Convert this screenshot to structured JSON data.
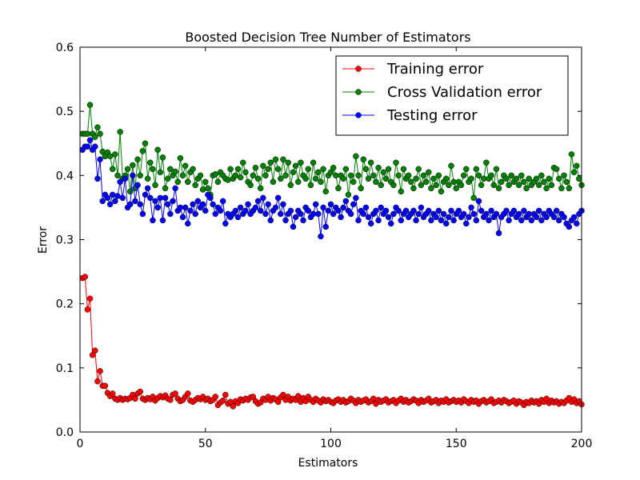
{
  "chart_data": {
    "type": "line",
    "title": "Boosted Decision Tree Number of Estimators",
    "x_label": "Estimators",
    "y_label": "Error",
    "xlim": [
      0,
      200
    ],
    "xticks": [
      0,
      50,
      100,
      150,
      200
    ],
    "ylim": [
      0,
      0.6
    ],
    "yticks": [
      {
        "value": 0,
        "label": "0.0"
      },
      0.1,
      0.2,
      0.3,
      0.4,
      0.5,
      0.6
    ],
    "legend": "upper right",
    "x": [
      1,
      2,
      3,
      4,
      5,
      6,
      7,
      8,
      9,
      10,
      11,
      12,
      13,
      14,
      15,
      16,
      17,
      18,
      19,
      20,
      21,
      22,
      23,
      24,
      25,
      26,
      27,
      28,
      29,
      30,
      31,
      32,
      33,
      34,
      35,
      36,
      37,
      38,
      39,
      40,
      41,
      42,
      43,
      44,
      45,
      46,
      47,
      48,
      49,
      50,
      51,
      52,
      53,
      54,
      55,
      56,
      57,
      58,
      59,
      60,
      61,
      62,
      63,
      64,
      65,
      66,
      67,
      68,
      69,
      70,
      71,
      72,
      73,
      74,
      75,
      76,
      77,
      78,
      79,
      80,
      81,
      82,
      83,
      84,
      85,
      86,
      87,
      88,
      89,
      90,
      91,
      92,
      93,
      94,
      95,
      96,
      97,
      98,
      99,
      100,
      101,
      102,
      103,
      104,
      105,
      106,
      107,
      108,
      109,
      110,
      111,
      112,
      113,
      114,
      115,
      116,
      117,
      118,
      119,
      120,
      121,
      122,
      123,
      124,
      125,
      126,
      127,
      128,
      129,
      130,
      131,
      132,
      133,
      134,
      135,
      136,
      137,
      138,
      139,
      140,
      141,
      142,
      143,
      144,
      145,
      146,
      147,
      148,
      149,
      150,
      151,
      152,
      153,
      154,
      155,
      156,
      157,
      158,
      159,
      160,
      161,
      162,
      163,
      164,
      165,
      166,
      167,
      168,
      169,
      170,
      171,
      172,
      173,
      174,
      175,
      176,
      177,
      178,
      179,
      180,
      181,
      182,
      183,
      184,
      185,
      186,
      187,
      188,
      189,
      190,
      191,
      192,
      193,
      194,
      195,
      196,
      197,
      198,
      199,
      200
    ],
    "series": [
      {
        "name": "Training error",
        "color": "#ff0000",
        "values": [
          0.24,
          0.242,
          0.191,
          0.208,
          0.12,
          0.127,
          0.079,
          0.095,
          0.072,
          0.072,
          0.061,
          0.056,
          0.06,
          0.052,
          0.05,
          0.053,
          0.05,
          0.052,
          0.051,
          0.053,
          0.058,
          0.052,
          0.06,
          0.063,
          0.052,
          0.05,
          0.053,
          0.051,
          0.055,
          0.049,
          0.053,
          0.056,
          0.054,
          0.057,
          0.052,
          0.05,
          0.058,
          0.06,
          0.052,
          0.048,
          0.05,
          0.055,
          0.06,
          0.049,
          0.047,
          0.05,
          0.053,
          0.051,
          0.055,
          0.05,
          0.052,
          0.048,
          0.05,
          0.055,
          0.042,
          0.046,
          0.049,
          0.058,
          0.044,
          0.047,
          0.04,
          0.048,
          0.045,
          0.051,
          0.049,
          0.052,
          0.05,
          0.054,
          0.055,
          0.048,
          0.044,
          0.046,
          0.052,
          0.05,
          0.055,
          0.049,
          0.053,
          0.051,
          0.047,
          0.054,
          0.058,
          0.05,
          0.055,
          0.049,
          0.052,
          0.05,
          0.056,
          0.047,
          0.053,
          0.048,
          0.055,
          0.05,
          0.047,
          0.052,
          0.049,
          0.046,
          0.051,
          0.048,
          0.05,
          0.047,
          0.045,
          0.049,
          0.051,
          0.047,
          0.05,
          0.046,
          0.048,
          0.052,
          0.049,
          0.045,
          0.05,
          0.047,
          0.049,
          0.051,
          0.046,
          0.048,
          0.052,
          0.044,
          0.05,
          0.047,
          0.049,
          0.051,
          0.046,
          0.048,
          0.05,
          0.045,
          0.049,
          0.052,
          0.047,
          0.05,
          0.046,
          0.048,
          0.051,
          0.049,
          0.045,
          0.05,
          0.047,
          0.049,
          0.052,
          0.046,
          0.048,
          0.05,
          0.045,
          0.049,
          0.047,
          0.051,
          0.046,
          0.048,
          0.05,
          0.047,
          0.049,
          0.046,
          0.051,
          0.048,
          0.045,
          0.05,
          0.047,
          0.049,
          0.044,
          0.048,
          0.05,
          0.046,
          0.048,
          0.051,
          0.045,
          0.047,
          0.049,
          0.046,
          0.05,
          0.048,
          0.045,
          0.047,
          0.049,
          0.044,
          0.048,
          0.046,
          0.042,
          0.047,
          0.045,
          0.049,
          0.046,
          0.048,
          0.044,
          0.05,
          0.047,
          0.052,
          0.045,
          0.049,
          0.046,
          0.048,
          0.044,
          0.047,
          0.045,
          0.049,
          0.053,
          0.047,
          0.051,
          0.045,
          0.048,
          0.043
        ]
      },
      {
        "name": "Cross Validation error",
        "color": "#008000",
        "values": [
          0.465,
          0.465,
          0.465,
          0.51,
          0.465,
          0.46,
          0.475,
          0.465,
          0.437,
          0.43,
          0.436,
          0.43,
          0.41,
          0.433,
          0.4,
          0.468,
          0.395,
          0.4,
          0.41,
          0.375,
          0.416,
          0.38,
          0.425,
          0.4,
          0.438,
          0.45,
          0.395,
          0.42,
          0.41,
          0.385,
          0.44,
          0.405,
          0.428,
          0.38,
          0.395,
          0.41,
          0.4,
          0.406,
          0.39,
          0.427,
          0.4,
          0.415,
          0.39,
          0.405,
          0.41,
          0.385,
          0.395,
          0.4,
          0.378,
          0.39,
          0.38,
          0.37,
          0.4,
          0.402,
          0.39,
          0.405,
          0.4,
          0.395,
          0.393,
          0.41,
          0.395,
          0.4,
          0.41,
          0.397,
          0.42,
          0.405,
          0.39,
          0.385,
          0.4,
          0.412,
          0.395,
          0.38,
          0.415,
          0.4,
          0.41,
          0.42,
          0.39,
          0.425,
          0.41,
          0.395,
          0.425,
          0.4,
          0.42,
          0.385,
          0.405,
          0.415,
          0.39,
          0.42,
          0.4,
          0.395,
          0.41,
          0.385,
          0.42,
          0.395,
          0.405,
          0.39,
          0.41,
          0.375,
          0.4,
          0.405,
          0.412,
          0.4,
          0.38,
          0.4,
          0.395,
          0.41,
          0.37,
          0.4,
          0.39,
          0.43,
          0.4,
          0.38,
          0.425,
          0.41,
          0.395,
          0.42,
          0.4,
          0.39,
          0.412,
          0.385,
          0.405,
          0.395,
          0.41,
          0.39,
          0.385,
          0.42,
          0.4,
          0.375,
          0.41,
          0.395,
          0.4,
          0.39,
          0.38,
          0.395,
          0.41,
          0.385,
          0.4,
          0.39,
          0.405,
          0.38,
          0.395,
          0.385,
          0.4,
          0.375,
          0.39,
          0.395,
          0.385,
          0.415,
          0.39,
          0.38,
          0.39,
          0.385,
          0.4,
          0.41,
          0.39,
          0.395,
          0.365,
          0.41,
          0.4,
          0.385,
          0.395,
          0.42,
          0.395,
          0.4,
          0.385,
          0.41,
          0.38,
          0.39,
          0.4,
          0.395,
          0.385,
          0.4,
          0.39,
          0.395,
          0.385,
          0.4,
          0.39,
          0.38,
          0.395,
          0.385,
          0.39,
          0.395,
          0.385,
          0.4,
          0.39,
          0.38,
          0.395,
          0.385,
          0.412,
          0.41,
          0.395,
          0.38,
          0.4,
          0.39,
          0.38,
          0.433,
          0.405,
          0.415,
          0.395,
          0.385
        ]
      },
      {
        "name": "Testing error",
        "color": "#0000ff",
        "values": [
          0.44,
          0.445,
          0.445,
          0.455,
          0.44,
          0.445,
          0.395,
          0.425,
          0.36,
          0.37,
          0.365,
          0.355,
          0.37,
          0.36,
          0.368,
          0.39,
          0.365,
          0.395,
          0.35,
          0.355,
          0.4,
          0.36,
          0.385,
          0.355,
          0.34,
          0.37,
          0.38,
          0.365,
          0.33,
          0.36,
          0.35,
          0.365,
          0.33,
          0.365,
          0.355,
          0.34,
          0.36,
          0.38,
          0.345,
          0.35,
          0.335,
          0.35,
          0.325,
          0.345,
          0.355,
          0.34,
          0.36,
          0.35,
          0.355,
          0.345,
          0.37,
          0.365,
          0.355,
          0.34,
          0.35,
          0.345,
          0.36,
          0.325,
          0.34,
          0.335,
          0.34,
          0.345,
          0.335,
          0.35,
          0.34,
          0.345,
          0.355,
          0.34,
          0.345,
          0.35,
          0.36,
          0.345,
          0.365,
          0.34,
          0.355,
          0.33,
          0.345,
          0.35,
          0.365,
          0.34,
          0.355,
          0.33,
          0.34,
          0.345,
          0.32,
          0.335,
          0.345,
          0.34,
          0.33,
          0.35,
          0.345,
          0.335,
          0.34,
          0.355,
          0.34,
          0.305,
          0.35,
          0.32,
          0.345,
          0.355,
          0.34,
          0.35,
          0.345,
          0.335,
          0.35,
          0.36,
          0.345,
          0.34,
          0.355,
          0.365,
          0.33,
          0.345,
          0.34,
          0.35,
          0.335,
          0.325,
          0.34,
          0.345,
          0.33,
          0.35,
          0.34,
          0.345,
          0.335,
          0.325,
          0.34,
          0.35,
          0.345,
          0.33,
          0.34,
          0.345,
          0.335,
          0.34,
          0.345,
          0.33,
          0.34,
          0.35,
          0.335,
          0.34,
          0.345,
          0.33,
          0.34,
          0.335,
          0.345,
          0.33,
          0.34,
          0.325,
          0.335,
          0.345,
          0.33,
          0.34,
          0.345,
          0.335,
          0.34,
          0.325,
          0.335,
          0.35,
          0.34,
          0.33,
          0.36,
          0.345,
          0.335,
          0.34,
          0.33,
          0.345,
          0.335,
          0.34,
          0.31,
          0.335,
          0.34,
          0.345,
          0.33,
          0.34,
          0.345,
          0.335,
          0.34,
          0.33,
          0.345,
          0.335,
          0.34,
          0.33,
          0.34,
          0.335,
          0.345,
          0.33,
          0.34,
          0.335,
          0.345,
          0.34,
          0.335,
          0.345,
          0.33,
          0.34,
          0.335,
          0.325,
          0.32,
          0.33,
          0.335,
          0.325,
          0.34,
          0.345
        ]
      }
    ]
  }
}
